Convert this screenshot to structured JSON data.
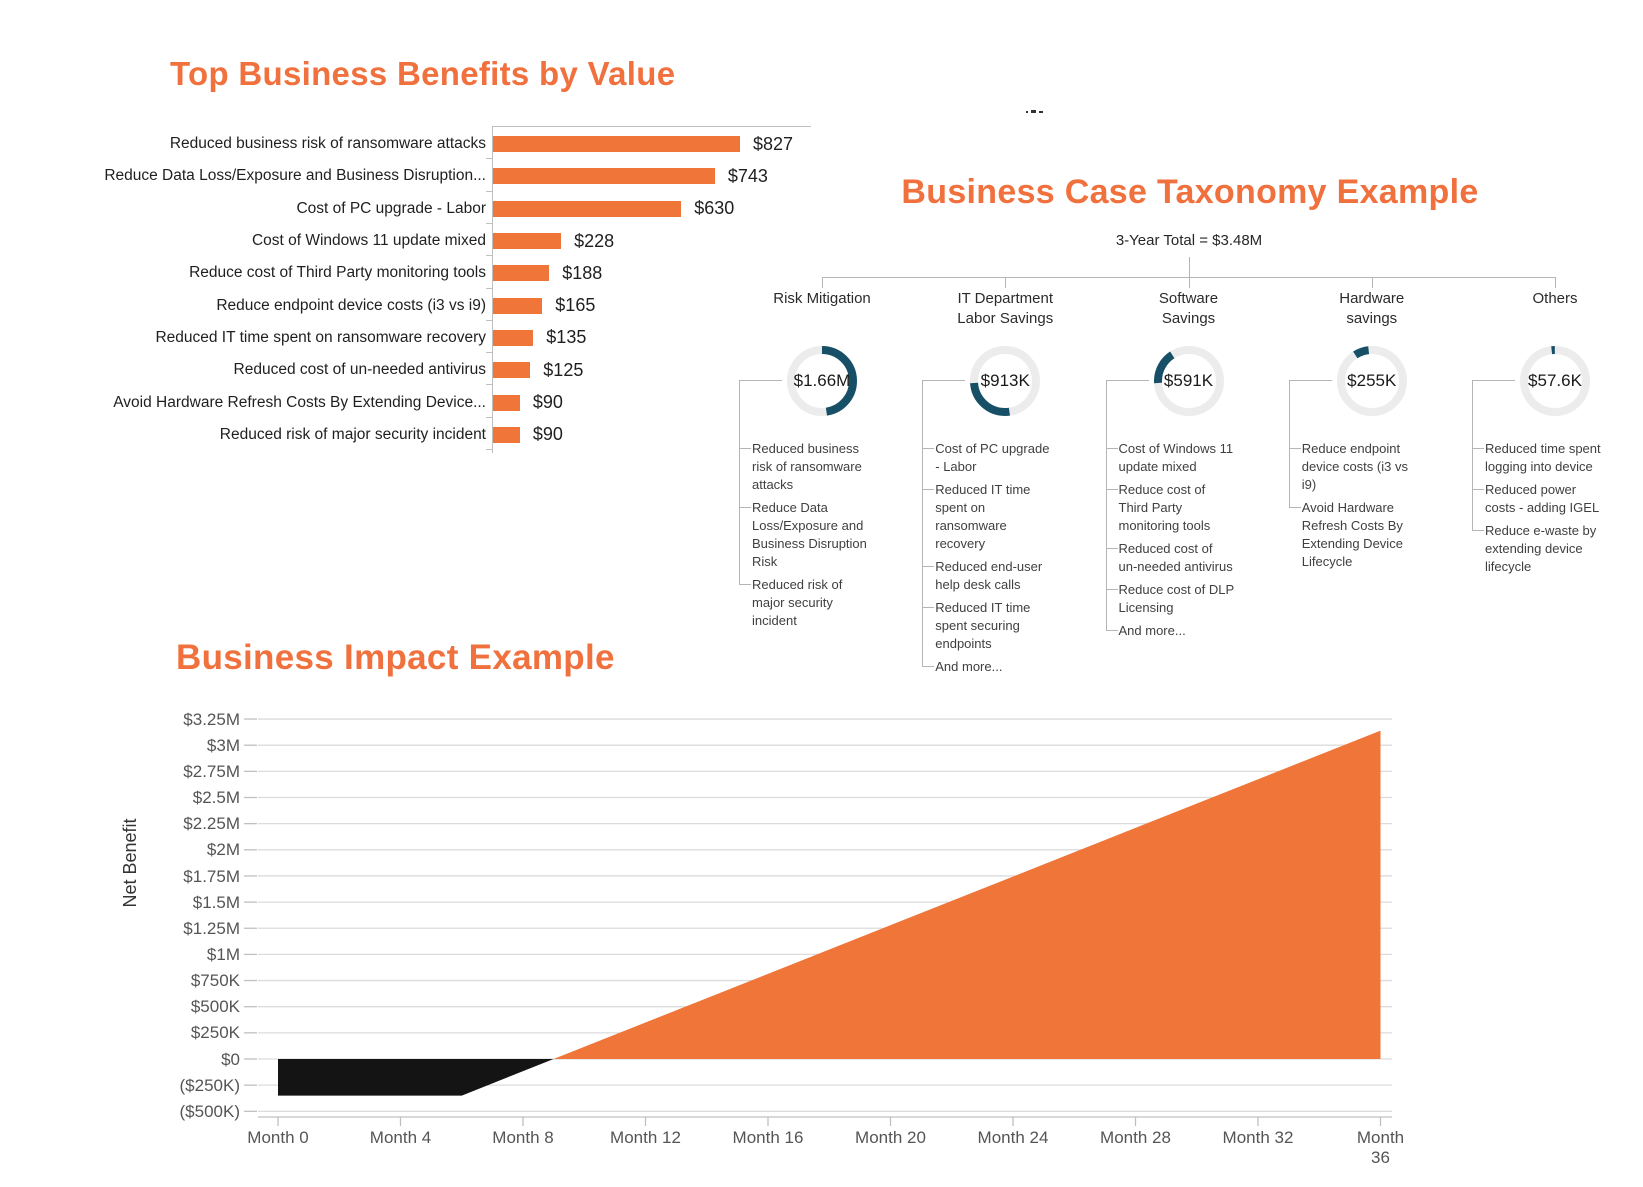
{
  "colors": {
    "title_orange": "#F0713D",
    "bar_orange": "#EF7539",
    "area_orange": "#EF7539",
    "area_negative_black": "#141414",
    "gauge_teal": "#175066",
    "gauge_ring_bg": "#ececec",
    "tree_line_gray": "#b5b5b5",
    "grid_gray": "#dcdcdc",
    "axis_gray": "#c0c0c0"
  },
  "chart_data": [
    {
      "type": "bar",
      "title": "Top Business Benefits by Value",
      "orientation": "horizontal",
      "xlim": [
        0,
        900
      ],
      "value_prefix": "$",
      "items": [
        {
          "label": "Reduced business risk of ransomware attacks",
          "value": 827,
          "value_label": "$827"
        },
        {
          "label": "Reduce Data Loss/Exposure and Business Disruption...",
          "value": 743,
          "value_label": "$743"
        },
        {
          "label": "Cost of PC upgrade - Labor",
          "value": 630,
          "value_label": "$630"
        },
        {
          "label": "Cost of Windows 11 update mixed",
          "value": 228,
          "value_label": "$228"
        },
        {
          "label": "Reduce cost of Third Party monitoring tools",
          "value": 188,
          "value_label": "$188"
        },
        {
          "label": "Reduce endpoint device costs (i3 vs i9)",
          "value": 165,
          "value_label": "$165"
        },
        {
          "label": "Reduced IT time spent on ransomware recovery",
          "value": 135,
          "value_label": "$135"
        },
        {
          "label": "Reduced cost of un-needed antivirus",
          "value": 125,
          "value_label": "$125"
        },
        {
          "label": "Avoid Hardware Refresh Costs By Extending Device...",
          "value": 90,
          "value_label": "$90"
        },
        {
          "label": "Reduced risk of major security incident",
          "value": 90,
          "value_label": "$90"
        }
      ]
    },
    {
      "type": "tree",
      "title": "Business Case Taxonomy Example",
      "root_label": "3-Year Total = $3.48M",
      "total_k": 3480,
      "categories": [
        {
          "name_lines": [
            "Risk Mitigation"
          ],
          "value_label": "$1.66M",
          "value_k": 1660,
          "items": [
            "Reduced business risk of ransomware attacks",
            "Reduce Data Loss/Exposure and Business Disruption Risk",
            "Reduced risk of major security incident"
          ]
        },
        {
          "name_lines": [
            "IT Department",
            "Labor Savings"
          ],
          "value_label": "$913K",
          "value_k": 913,
          "items": [
            "Cost of PC upgrade - Labor",
            "Reduced IT time spent on ransomware recovery",
            "Reduced end-user help desk calls",
            "Reduced IT time spent securing endpoints",
            "And more..."
          ]
        },
        {
          "name_lines": [
            "Software",
            "Savings"
          ],
          "value_label": "$591K",
          "value_k": 591,
          "items": [
            "Cost of Windows 11 update mixed",
            "Reduce cost of Third Party monitoring tools",
            "Reduced cost of un-needed antivirus",
            "Reduce cost of DLP Licensing",
            "And more..."
          ]
        },
        {
          "name_lines": [
            "Hardware",
            "savings"
          ],
          "value_label": "$255K",
          "value_k": 255,
          "items": [
            "Reduce endpoint device costs (i3 vs i9)",
            "Avoid Hardware Refresh Costs By Extending Device Lifecycle"
          ]
        },
        {
          "name_lines": [
            "Others"
          ],
          "value_label": "$57.6K",
          "value_k": 57.6,
          "items": [
            "Reduced time spent logging into device",
            "Reduced power costs - adding IGEL",
            "Reduce e-waste by extending device lifecycle"
          ]
        }
      ]
    },
    {
      "type": "area",
      "title": "Business Impact Example",
      "ylabel": "Net Benefit",
      "xlim": [
        0,
        36
      ],
      "ylim": [
        -500000,
        3250000
      ],
      "grid": true,
      "y_ticks": [
        "$3.25M",
        "$3M",
        "$2.75M",
        "$2.5M",
        "$2.25M",
        "$2M",
        "$1.75M",
        "$1.5M",
        "$1.25M",
        "$1M",
        "$750K",
        "$500K",
        "$250K",
        "$0",
        "($250K)",
        "($500K)"
      ],
      "y_tick_values": [
        3250000,
        3000000,
        2750000,
        2500000,
        2250000,
        2000000,
        1750000,
        1500000,
        1250000,
        1000000,
        750000,
        500000,
        250000,
        0,
        -250000,
        -500000
      ],
      "x_ticks": [
        "Month 0",
        "Month 4",
        "Month 8",
        "Month 12",
        "Month 16",
        "Month 20",
        "Month 24",
        "Month 28",
        "Month 32",
        "Month 36"
      ],
      "x_tick_months": [
        0,
        4,
        8,
        12,
        16,
        20,
        24,
        28,
        32,
        36
      ],
      "series": [
        {
          "name": "Net Benefit",
          "points": [
            {
              "month": 0,
              "value": -350000
            },
            {
              "month": 6,
              "value": -350000
            },
            {
              "month": 9,
              "value": 0
            },
            {
              "month": 36,
              "value": 3140000
            }
          ]
        }
      ]
    }
  ]
}
